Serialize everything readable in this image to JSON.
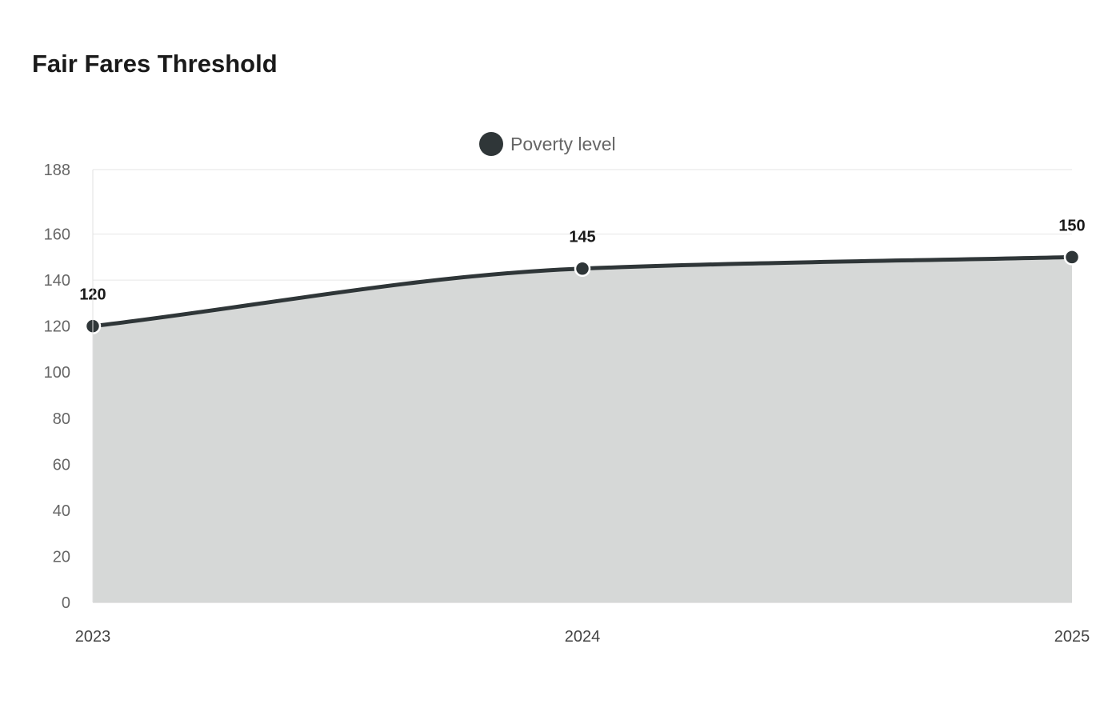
{
  "chart_data": {
    "type": "area",
    "title": "Fair Fares Threshold",
    "xlabel": "",
    "ylabel": "",
    "categories": [
      "2023",
      "2024",
      "2025"
    ],
    "series": [
      {
        "name": "Poverty level",
        "values": [
          120,
          145,
          150
        ],
        "color": "#2f3638",
        "fill": "#d6d8d7"
      }
    ],
    "ylim": [
      0,
      188
    ],
    "yticks": [
      0,
      20,
      40,
      60,
      80,
      100,
      120,
      140,
      160,
      188
    ],
    "data_labels": [
      "120",
      "145",
      "150"
    ],
    "legend_position": "top-center",
    "grid": true
  }
}
